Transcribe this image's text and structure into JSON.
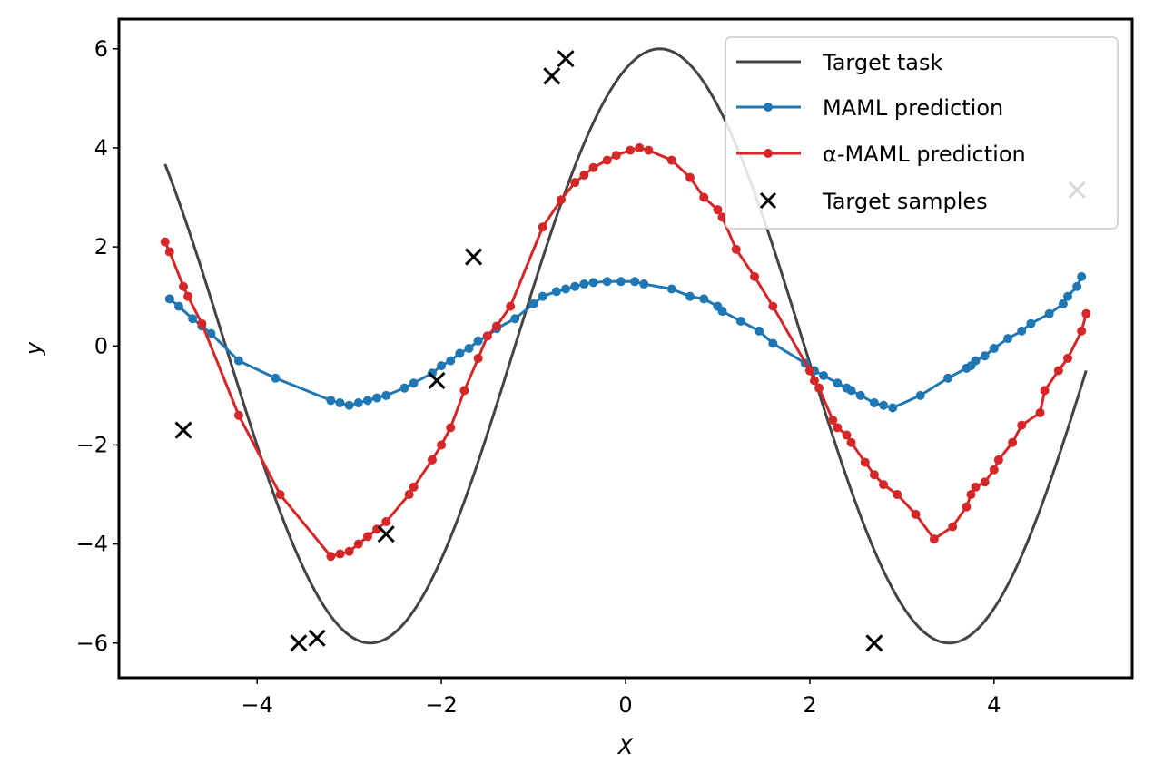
{
  "chart_data": {
    "type": "line",
    "title": "",
    "xlabel": "X",
    "ylabel": "y",
    "xlim": [
      -5.5,
      5.5
    ],
    "ylim": [
      -6.7,
      6.6
    ],
    "xticks": [
      -4,
      -2,
      0,
      2,
      4
    ],
    "yticks": [
      6,
      4,
      2,
      0,
      -2,
      -4,
      -6
    ],
    "xtick_labels": [
      "−4",
      "−2",
      "0",
      "2",
      "4"
    ],
    "ytick_labels": [
      "6",
      "4",
      "2",
      "0",
      "−2",
      "−4",
      "−6"
    ],
    "grid": false,
    "legend_position": "top-right",
    "target_curve": {
      "name": "Target task",
      "color": "#444444",
      "amplitude": 6.0,
      "phase": 1.2,
      "x_range": [
        -5.0,
        5.0
      ]
    },
    "series": [
      {
        "name": "MAML prediction",
        "color": "#1f77b4",
        "x": [
          -4.95,
          -4.85,
          -4.7,
          -4.6,
          -4.5,
          -4.2,
          -3.8,
          -3.2,
          -3.1,
          -3.0,
          -2.9,
          -2.8,
          -2.7,
          -2.6,
          -2.4,
          -2.3,
          -2.1,
          -2.0,
          -1.9,
          -1.8,
          -1.7,
          -1.6,
          -1.5,
          -1.4,
          -1.2,
          -1.0,
          -0.9,
          -0.75,
          -0.65,
          -0.55,
          -0.45,
          -0.35,
          -0.2,
          -0.05,
          0.1,
          0.2,
          0.5,
          0.7,
          0.85,
          1.0,
          1.05,
          1.25,
          1.45,
          1.6,
          1.95,
          2.05,
          2.15,
          2.3,
          2.4,
          2.45,
          2.55,
          2.7,
          2.8,
          2.9,
          3.2,
          3.5,
          3.7,
          3.75,
          3.8,
          3.9,
          4.0,
          4.15,
          4.3,
          4.4,
          4.6,
          4.75,
          4.8,
          4.9,
          4.95
        ],
        "y": [
          0.95,
          0.8,
          0.55,
          0.4,
          0.25,
          -0.3,
          -0.65,
          -1.1,
          -1.15,
          -1.2,
          -1.15,
          -1.1,
          -1.05,
          -1.0,
          -0.85,
          -0.75,
          -0.55,
          -0.4,
          -0.3,
          -0.15,
          -0.05,
          0.1,
          0.2,
          0.35,
          0.55,
          0.85,
          1.0,
          1.1,
          1.15,
          1.2,
          1.25,
          1.28,
          1.3,
          1.3,
          1.3,
          1.25,
          1.15,
          1.0,
          0.95,
          0.8,
          0.7,
          0.5,
          0.3,
          0.05,
          -0.35,
          -0.5,
          -0.6,
          -0.75,
          -0.85,
          -0.9,
          -1.0,
          -1.15,
          -1.2,
          -1.25,
          -1.0,
          -0.65,
          -0.45,
          -0.4,
          -0.3,
          -0.2,
          -0.05,
          0.15,
          0.3,
          0.45,
          0.65,
          0.85,
          1.0,
          1.2,
          1.4
        ]
      },
      {
        "name": "α-MAML prediction",
        "color": "#d62728",
        "x": [
          -5.0,
          -4.95,
          -4.8,
          -4.75,
          -4.6,
          -4.2,
          -3.75,
          -3.2,
          -3.1,
          -3.0,
          -2.9,
          -2.8,
          -2.7,
          -2.6,
          -2.35,
          -2.3,
          -2.1,
          -2.0,
          -1.9,
          -1.75,
          -1.6,
          -1.5,
          -1.4,
          -1.25,
          -0.9,
          -0.7,
          -0.55,
          -0.45,
          -0.35,
          -0.2,
          -0.1,
          0.05,
          0.15,
          0.25,
          0.5,
          0.7,
          0.85,
          1.0,
          1.05,
          1.2,
          1.4,
          1.6,
          2.0,
          2.05,
          2.1,
          2.25,
          2.3,
          2.4,
          2.45,
          2.6,
          2.7,
          2.8,
          2.95,
          3.15,
          3.35,
          3.55,
          3.7,
          3.75,
          3.8,
          3.9,
          4.0,
          4.05,
          4.2,
          4.3,
          4.5,
          4.55,
          4.7,
          4.8,
          4.95,
          5.0
        ],
        "y": [
          2.1,
          1.9,
          1.2,
          1.0,
          0.45,
          -1.4,
          -3.0,
          -4.25,
          -4.2,
          -4.15,
          -4.0,
          -3.85,
          -3.7,
          -3.55,
          -3.0,
          -2.85,
          -2.3,
          -2.0,
          -1.65,
          -0.9,
          -0.25,
          0.2,
          0.4,
          0.8,
          2.4,
          2.95,
          3.3,
          3.45,
          3.6,
          3.75,
          3.85,
          3.95,
          4.0,
          3.95,
          3.75,
          3.4,
          3.0,
          2.75,
          2.6,
          1.95,
          1.4,
          0.8,
          -0.5,
          -0.7,
          -0.85,
          -1.5,
          -1.65,
          -1.8,
          -1.95,
          -2.35,
          -2.6,
          -2.8,
          -3.0,
          -3.4,
          -3.9,
          -3.65,
          -3.25,
          -3.0,
          -2.85,
          -2.75,
          -2.5,
          -2.3,
          -1.95,
          -1.6,
          -1.35,
          -0.9,
          -0.5,
          -0.25,
          0.3,
          0.65
        ]
      }
    ],
    "scatter": {
      "name": "Target samples",
      "color": "#000000",
      "x": [
        -4.8,
        -3.55,
        -3.35,
        -2.6,
        -2.05,
        -1.65,
        -0.8,
        -0.65,
        2.7,
        4.9
      ],
      "y": [
        -1.7,
        -6.0,
        -5.9,
        -3.8,
        -0.7,
        1.8,
        5.45,
        5.8,
        -6.0,
        3.15
      ]
    }
  }
}
